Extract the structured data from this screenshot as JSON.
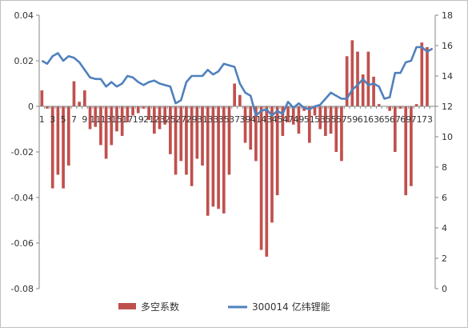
{
  "chart_data": {
    "type": "bar",
    "title": "",
    "xlabel": "",
    "ylabel": "",
    "x": [
      1,
      2,
      3,
      4,
      5,
      6,
      7,
      8,
      9,
      10,
      11,
      12,
      13,
      14,
      15,
      16,
      17,
      18,
      19,
      20,
      21,
      22,
      23,
      24,
      25,
      26,
      27,
      28,
      29,
      30,
      31,
      32,
      33,
      34,
      35,
      36,
      37,
      38,
      39,
      40,
      41,
      42,
      43,
      44,
      45,
      46,
      47,
      48,
      49,
      50,
      51,
      52,
      53,
      54,
      55,
      56,
      57,
      58,
      59,
      60,
      61,
      62,
      63,
      64,
      65,
      66,
      67,
      68,
      69,
      70,
      71,
      72,
      73,
      74
    ],
    "x_tick_labels": [
      "1",
      "3",
      "5",
      "7",
      "9",
      "11",
      "13",
      "15",
      "17",
      "19",
      "21",
      "23",
      "25",
      "27",
      "29",
      "31",
      "33",
      "35",
      "37",
      "39",
      "41",
      "43",
      "45",
      "47",
      "49",
      "51",
      "53",
      "55",
      "57",
      "59",
      "61",
      "63",
      "65",
      "67",
      "69",
      "71",
      "73"
    ],
    "x_tick_values": [
      1,
      3,
      5,
      7,
      9,
      11,
      13,
      15,
      17,
      19,
      21,
      23,
      25,
      27,
      29,
      31,
      33,
      35,
      37,
      39,
      41,
      43,
      45,
      47,
      49,
      51,
      53,
      55,
      57,
      59,
      61,
      63,
      65,
      67,
      69,
      71,
      73
    ],
    "y_left": {
      "ylim": [
        -0.08,
        0.04
      ],
      "ticks": [
        "0.04",
        "0.02",
        "0",
        "-0.02",
        "-0.04",
        "-0.06",
        "-0.08"
      ],
      "tick_values": [
        0.04,
        0.02,
        0,
        -0.02,
        -0.04,
        -0.06,
        -0.08
      ]
    },
    "y_right": {
      "ylim": [
        0,
        18
      ],
      "ticks": [
        "18",
        "16",
        "14",
        "12",
        "10",
        "8",
        "6",
        "4",
        "2",
        "0"
      ],
      "tick_values": [
        18,
        16,
        14,
        12,
        10,
        8,
        6,
        4,
        2,
        0
      ]
    },
    "grid": false,
    "legend_position": "bottom",
    "series": [
      {
        "name": "多空系数",
        "type": "bar",
        "axis": "left",
        "color": "#c0504d",
        "values": [
          0.007,
          -0.001,
          -0.036,
          -0.03,
          -0.036,
          -0.026,
          0.011,
          0.002,
          0.007,
          -0.01,
          -0.009,
          -0.017,
          -0.023,
          -0.017,
          -0.011,
          -0.013,
          -0.007,
          -0.004,
          -0.003,
          -0.001,
          -0.006,
          -0.012,
          -0.01,
          -0.008,
          -0.021,
          -0.03,
          -0.024,
          -0.03,
          -0.035,
          -0.023,
          -0.026,
          -0.048,
          -0.044,
          -0.045,
          -0.047,
          -0.03,
          0.01,
          0.005,
          -0.016,
          -0.019,
          -0.024,
          -0.063,
          -0.066,
          -0.051,
          -0.039,
          -0.013,
          -0.007,
          -0.008,
          -0.012,
          -0.002,
          -0.016,
          -0.004,
          -0.01,
          -0.013,
          -0.012,
          -0.02,
          -0.024,
          0.022,
          0.029,
          0.024,
          0.014,
          0.024,
          0.013,
          0.001,
          0.0,
          -0.002,
          -0.02,
          -0.001,
          -0.039,
          -0.035,
          0.001,
          0.028,
          0.026,
          0.0
        ]
      },
      {
        "name": "300014 亿纬锂能",
        "type": "line",
        "axis": "right",
        "color": "#4f81bd",
        "values": [
          15.0,
          14.8,
          15.3,
          15.5,
          15.0,
          15.3,
          15.2,
          14.9,
          14.4,
          13.9,
          13.8,
          13.8,
          13.3,
          13.6,
          13.3,
          13.5,
          14.0,
          13.9,
          13.6,
          13.4,
          13.6,
          13.7,
          13.5,
          13.4,
          13.3,
          12.2,
          12.4,
          13.6,
          14.0,
          14.0,
          14.0,
          14.4,
          14.1,
          14.3,
          14.8,
          14.7,
          14.6,
          13.5,
          12.9,
          12.7,
          11.4,
          11.7,
          11.8,
          11.4,
          11.7,
          11.5,
          12.3,
          11.9,
          12.2,
          11.9,
          11.8,
          12.0,
          12.1,
          12.5,
          12.9,
          12.7,
          12.5,
          12.5,
          13.1,
          13.4,
          13.8,
          13.4,
          13.5,
          13.3,
          12.5,
          12.6,
          14.2,
          14.2,
          14.9,
          15.0,
          15.9,
          15.9,
          15.6,
          15.8
        ]
      }
    ],
    "legend": [
      {
        "label": "多空系数",
        "symbol": "bar",
        "color": "#c0504d"
      },
      {
        "label": "300014 亿纬锂能",
        "symbol": "line",
        "color": "#4f81bd"
      }
    ]
  }
}
